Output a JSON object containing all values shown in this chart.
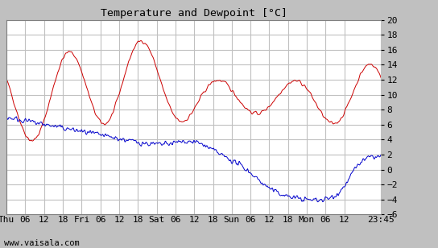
{
  "title": "Temperature and Dewpoint [°C]",
  "background_color": "#c0c0c0",
  "plot_background": "#ffffff",
  "grid_color": "#c0c0c0",
  "temp_color": "#cc0000",
  "dew_color": "#0000cc",
  "ylim": [
    -6,
    20
  ],
  "yticks": [
    -6,
    -4,
    -2,
    0,
    2,
    4,
    6,
    8,
    10,
    12,
    14,
    16,
    18,
    20
  ],
  "footer": "www.vaisala.com",
  "x_tick_labels": [
    "Thu",
    "06",
    "12",
    "18",
    "Fri",
    "06",
    "12",
    "18",
    "Sat",
    "06",
    "12",
    "18",
    "Sun",
    "06",
    "12",
    "18",
    "Mon",
    "06",
    "12",
    "23:45"
  ],
  "x_tick_positions": [
    0,
    6,
    12,
    18,
    24,
    30,
    36,
    42,
    48,
    54,
    60,
    66,
    72,
    78,
    84,
    90,
    96,
    102,
    108,
    119.75
  ],
  "x_total_hours": 119.75
}
